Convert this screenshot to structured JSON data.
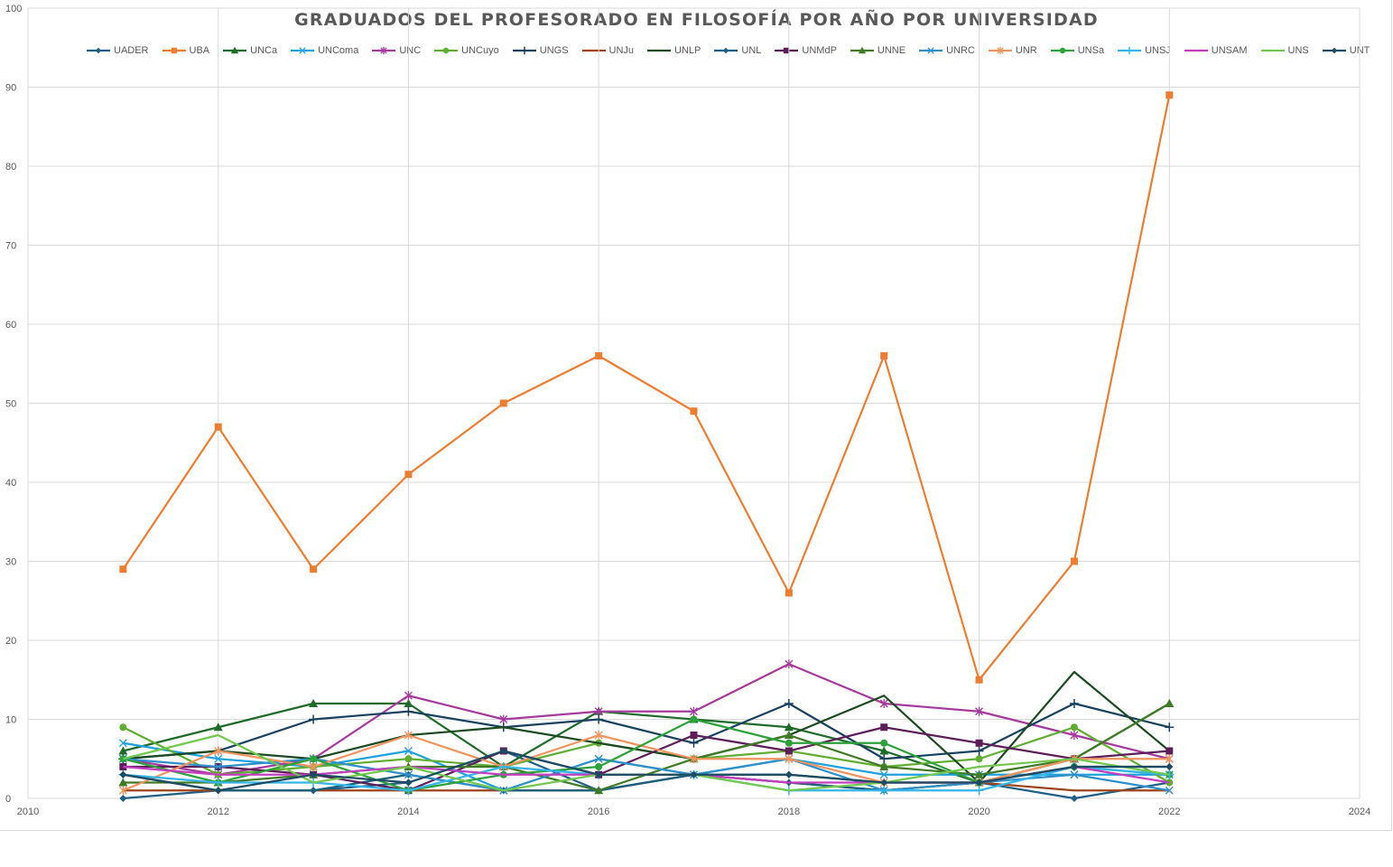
{
  "chart_data": {
    "type": "line",
    "title": "GRADUADOS DEL PROFESORADO EN FILOSOFÍA POR AÑO POR UNIVERSIDAD",
    "xlabel": "",
    "ylabel": "",
    "xlim": [
      2010,
      2024
    ],
    "ylim": [
      0,
      100
    ],
    "x_ticks": [
      2010,
      2012,
      2014,
      2016,
      2018,
      2020,
      2022,
      2024
    ],
    "y_ticks": [
      0,
      10,
      20,
      30,
      40,
      50,
      60,
      70,
      80,
      90,
      100
    ],
    "grid": true,
    "legend_position": "top",
    "x": [
      2011,
      2012,
      2013,
      2014,
      2015,
      2016,
      2017,
      2018,
      2019,
      2020,
      2021,
      2022
    ],
    "series": [
      {
        "name": "UADER",
        "color": "#1f5f86",
        "marker": "diamond",
        "values": [
          0,
          1,
          1,
          2,
          6,
          1,
          3,
          3,
          2,
          2,
          0,
          2
        ]
      },
      {
        "name": "UBA",
        "color": "#ed7d31",
        "marker": "square",
        "values": [
          29,
          47,
          29,
          41,
          50,
          56,
          49,
          26,
          56,
          15,
          30,
          89
        ]
      },
      {
        "name": "UNCa",
        "color": "#1e6b2a",
        "marker": "triangle",
        "values": [
          6,
          9,
          12,
          12,
          4,
          11,
          10,
          9,
          6,
          2,
          5,
          12
        ]
      },
      {
        "name": "UNComa",
        "color": "#1ea1e0",
        "marker": "x",
        "values": [
          7,
          5,
          4,
          6,
          1,
          5,
          3,
          5,
          3,
          3,
          3,
          3
        ]
      },
      {
        "name": "UNC",
        "color": "#a6399e",
        "marker": "star",
        "values": [
          5,
          3,
          5,
          13,
          10,
          11,
          11,
          17,
          12,
          11,
          8,
          5
        ]
      },
      {
        "name": "UNCuyo",
        "color": "#5fae32",
        "marker": "circle",
        "values": [
          9,
          3,
          4,
          5,
          4,
          7,
          5,
          6,
          4,
          5,
          9,
          2
        ]
      },
      {
        "name": "UNGS",
        "color": "#17415f",
        "marker": "plus",
        "values": [
          5,
          6,
          10,
          11,
          9,
          10,
          7,
          12,
          5,
          6,
          12,
          9
        ]
      },
      {
        "name": "UNJu",
        "color": "#9e4418",
        "marker": "none",
        "values": [
          1,
          1,
          1,
          1,
          1,
          1,
          3,
          2,
          1,
          2,
          1,
          1
        ]
      },
      {
        "name": "UNLP",
        "color": "#1b4a20",
        "marker": "none",
        "values": [
          5,
          6,
          5,
          8,
          9,
          7,
          5,
          8,
          13,
          2,
          16,
          6
        ]
      },
      {
        "name": "UNL",
        "color": "#16617f",
        "marker": "diamond",
        "values": [
          3,
          1,
          1,
          3,
          1,
          1,
          3,
          2,
          1,
          2,
          4,
          4
        ]
      },
      {
        "name": "UNMdP",
        "color": "#5c1d59",
        "marker": "square",
        "values": [
          4,
          4,
          3,
          1,
          6,
          3,
          8,
          6,
          9,
          7,
          5,
          6
        ]
      },
      {
        "name": "UNNE",
        "color": "#3f7a27",
        "marker": "triangle",
        "values": [
          2,
          2,
          3,
          4,
          4,
          1,
          5,
          8,
          4,
          3,
          5,
          12
        ]
      },
      {
        "name": "UNRC",
        "color": "#2e8fc9",
        "marker": "x",
        "values": [
          5,
          4,
          5,
          3,
          1,
          5,
          3,
          5,
          1,
          2,
          3,
          1
        ]
      },
      {
        "name": "UNR",
        "color": "#f0935d",
        "marker": "star",
        "values": [
          1,
          6,
          4,
          8,
          4,
          8,
          5,
          5,
          2,
          2,
          5,
          5
        ]
      },
      {
        "name": "UNSa",
        "color": "#2da13a",
        "marker": "circle",
        "values": [
          5,
          2,
          5,
          1,
          3,
          4,
          10,
          7,
          7,
          2,
          4,
          3
        ]
      },
      {
        "name": "UNSJ",
        "color": "#33b5ea",
        "marker": "plus",
        "values": [
          3,
          2,
          2,
          1,
          4,
          3,
          3,
          1,
          1,
          1,
          4,
          3
        ]
      },
      {
        "name": "UNSAM",
        "color": "#c43fbf",
        "marker": "none",
        "values": [
          4,
          3,
          3,
          4,
          3,
          3,
          3,
          2,
          2,
          2,
          4,
          2
        ]
      },
      {
        "name": "UNS",
        "color": "#72c84e",
        "marker": "none",
        "values": [
          5,
          8,
          2,
          4,
          1,
          3,
          3,
          1,
          2,
          4,
          5,
          3
        ]
      },
      {
        "name": "UNT",
        "color": "#1c4b63",
        "marker": "diamond",
        "values": [
          3,
          1,
          3,
          2,
          6,
          3,
          3,
          3,
          2,
          2,
          4,
          4
        ]
      }
    ]
  }
}
